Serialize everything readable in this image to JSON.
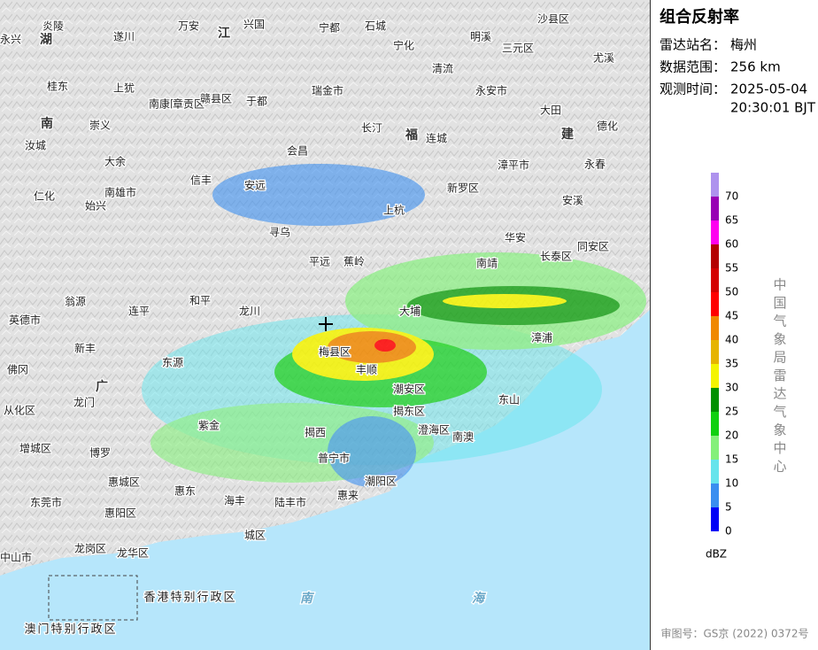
{
  "panel": {
    "title": "组合反射率",
    "station": {
      "label": "雷达站名：",
      "value": "梅州"
    },
    "range": {
      "label": "数据范围：",
      "value": "256 km"
    },
    "time": {
      "label": "观测时间：",
      "value": [
        "2025-05-04",
        "20:30:01 BJT"
      ]
    },
    "legend": {
      "unit": "dBZ",
      "levels": [
        0,
        5,
        10,
        15,
        20,
        25,
        30,
        35,
        40,
        45,
        50,
        55,
        60,
        65,
        70
      ],
      "colors": [
        "#0000f6",
        "#3a8ef0",
        "#66e4ec",
        "#84f07a",
        "#10d010",
        "#009000",
        "#f4f400",
        "#e6b400",
        "#f08800",
        "#ff0000",
        "#d40000",
        "#b40000",
        "#ff00f0",
        "#9800b4",
        "#ae92ee"
      ]
    },
    "credit": "中国气象局雷达气象中心",
    "approval": "审图号：GS京 (2022) 0372号"
  },
  "map": {
    "labels": [
      "炎陵",
      "永兴",
      "遂川",
      "万安",
      "兴国",
      "宁都",
      "石城",
      "宁化",
      "明溪",
      "三元区",
      "沙县区",
      "尤溪",
      "清流",
      "永安市",
      "桂东",
      "上犹",
      "南康区",
      "章贡区",
      "赣县区",
      "于都",
      "瑞金市",
      "长汀",
      "连城",
      "大田",
      "德化",
      "汝城",
      "崇义",
      "大余",
      "会昌",
      "漳平市",
      "永春",
      "南雄市",
      "信丰",
      "安远",
      "新罗区",
      "安溪",
      "仁化",
      "始兴",
      "寻乌",
      "上杭",
      "华安",
      "同安区",
      "翁源",
      "英德市",
      "连平",
      "和平",
      "龙川",
      "平远",
      "蕉岭",
      "大埔",
      "南靖",
      "长泰区",
      "东源",
      "佛冈",
      "新丰",
      "梅县区",
      "丰顺",
      "漳浦",
      "东山",
      "龙门",
      "紫金",
      "揭西",
      "揭东区",
      "潮安区",
      "澄海区",
      "南澳",
      "从化区",
      "增城区",
      "博罗",
      "惠城区",
      "惠东",
      "海丰",
      "陆丰市",
      "普宁市",
      "潮阳区",
      "惠来",
      "东莞市",
      "惠阳区",
      "城区",
      "龙岗区",
      "龙华区",
      "中山市",
      "香港特别行政区",
      "澳门特别行政区"
    ],
    "regions": [
      "湖",
      "南",
      "江",
      "福",
      "建",
      "广",
      "南",
      "海"
    ]
  }
}
